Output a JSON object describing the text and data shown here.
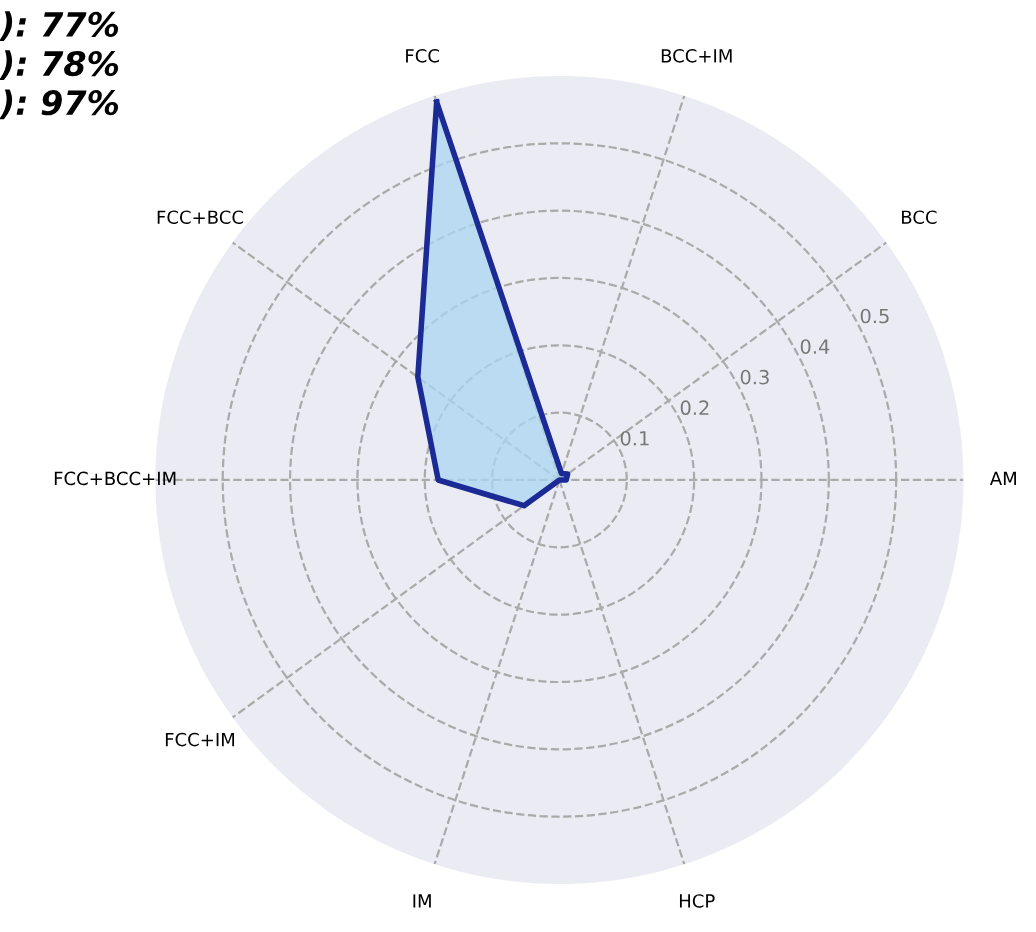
{
  "chart_data": {
    "type": "radar",
    "categories": [
      "FCC",
      "BCC+IM",
      "BCC",
      "AM",
      "HCP",
      "IM",
      "FCC+IM",
      "FCC+BCC+IM",
      "FCC+BCC"
    ],
    "series": [
      {
        "color": "#1c2a96",
        "values": [
          0.59,
          0.01,
          0.015,
          0.01,
          0,
          0,
          0.065,
          0.18,
          0.26
        ]
      }
    ],
    "ylim": [
      0,
      0.6
    ],
    "yticks": [
      0.1,
      0.2,
      0.3,
      0.4,
      0.5
    ],
    "grid": true,
    "line_style": "solid",
    "annotations": [
      "): 77%",
      "): 78%",
      "): 97%"
    ]
  }
}
